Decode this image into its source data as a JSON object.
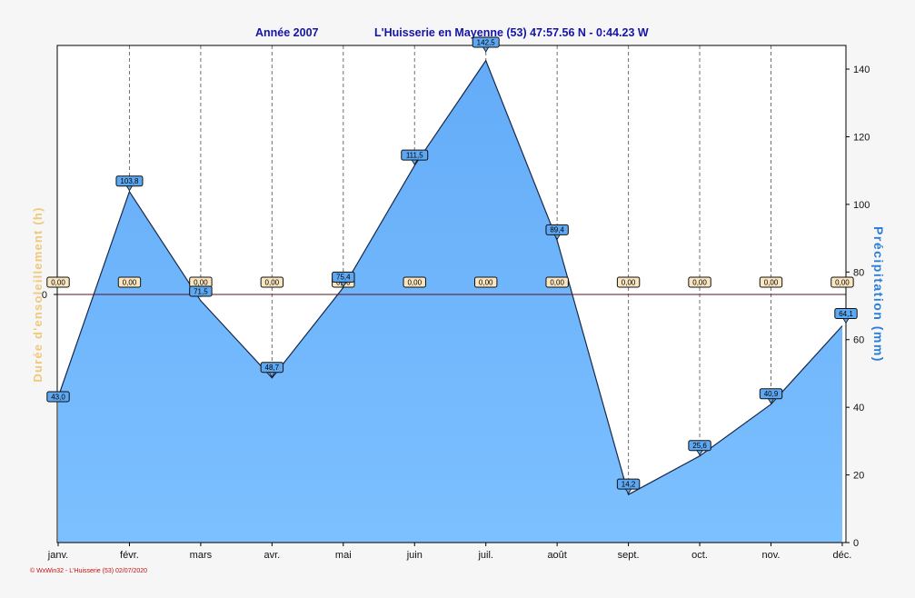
{
  "header": {
    "year_text": "Année  2007",
    "location_text": "L'Huisserie en Mayenne (53) 47:57.56 N - 0:44.23 W"
  },
  "footer": {
    "credit": "© WxWin32 - L'Huisserie (53)  02/07/2020"
  },
  "colors": {
    "fill": "#6eb4fa",
    "line": "#18284a",
    "sun_label_bg": "#fae6c0",
    "precip_label_bg": "#5ea8f2",
    "left_axis_label": "#f0c878",
    "right_axis_label": "#2c7fd8",
    "title": "#1414a8"
  },
  "chart_data": {
    "type": "area",
    "title": "Année  2007    L'Huisserie en Mayenne (53) 47:57.56 N - 0:44.23 W",
    "categories": [
      "janv.",
      "févr.",
      "mars",
      "avr.",
      "mai",
      "juin",
      "juil.",
      "août",
      "sept.",
      "oct.",
      "nov.",
      "déc."
    ],
    "series": [
      {
        "name": "Précipitation  (mm)",
        "axis": "right",
        "values": [
          43.0,
          103.8,
          71.5,
          48.7,
          75.4,
          111.5,
          142.5,
          89.4,
          14.2,
          25.6,
          40.9,
          64.1
        ],
        "labels": [
          "43,0",
          "103,8",
          "71,5",
          "48,7",
          "75,4",
          "111,5",
          "142,5",
          "89,4",
          "14,2",
          "25,6",
          "40,9",
          "64,1"
        ]
      },
      {
        "name": "Durée d'ensoleillement  (h)",
        "axis": "left",
        "values": [
          0,
          0,
          0,
          0,
          0,
          0,
          0,
          0,
          0,
          0,
          0,
          0
        ],
        "labels": [
          "0,00",
          "0,00",
          "0,00",
          "0,00",
          "0,00",
          "0,00",
          "0,00",
          "0,00",
          "0,00",
          "0,00",
          "0,00",
          "0,00"
        ]
      }
    ],
    "ylabel_left": "Durée d'ensoleillement  (h)",
    "ylabel_right": "Précipitation  (mm)",
    "ylim_right": [
      0,
      147
    ],
    "yticks_right": [
      "0",
      "20",
      "40",
      "60",
      "80",
      "100",
      "120",
      "140"
    ],
    "ytick_left": "0",
    "grid": "vertical dashed"
  }
}
